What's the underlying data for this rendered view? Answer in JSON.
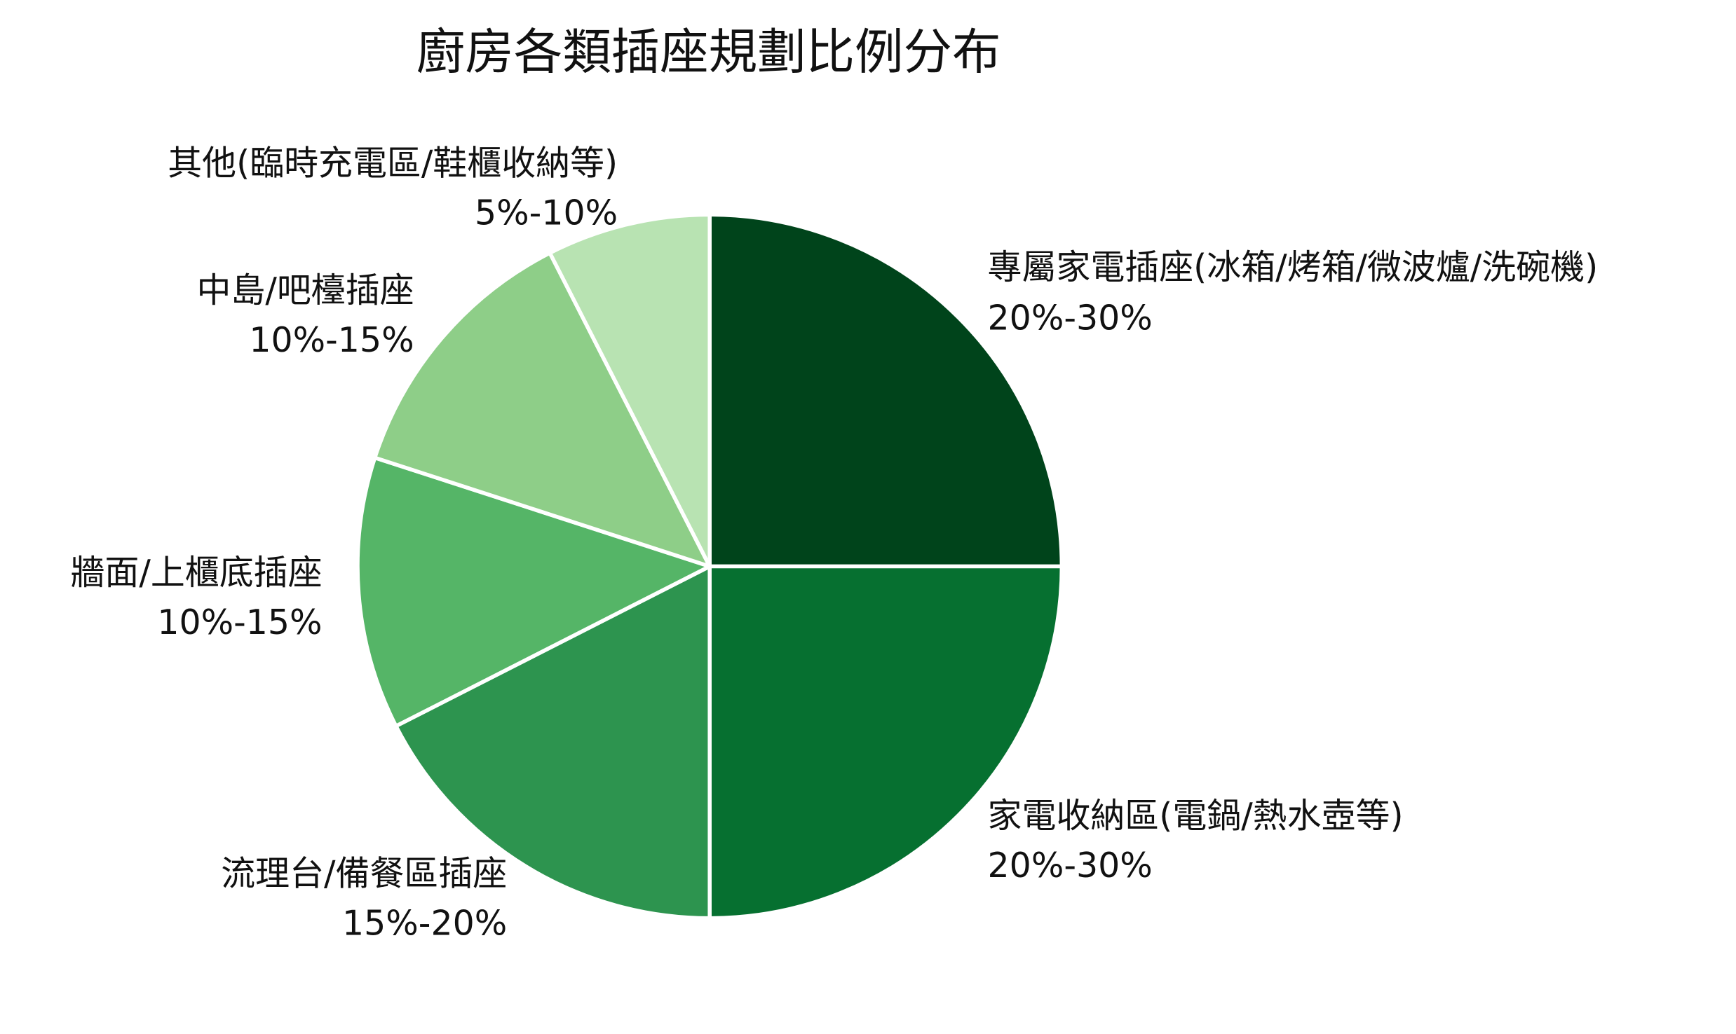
{
  "chart_data": {
    "type": "pie",
    "title": "廚房各類插座規劃比例分布",
    "slices": [
      {
        "label": "專屬家電插座(冰箱/烤箱/微波爐/洗碗機)",
        "range_label": "20%-30%",
        "value": 25,
        "color": "#00441b"
      },
      {
        "label": "家電收納區(電鍋/熱水壺等)",
        "range_label": "20%-30%",
        "value": 25,
        "color": "#067030"
      },
      {
        "label": "流理台/備餐區插座",
        "range_label": "15%-20%",
        "value": 17.5,
        "color": "#2d944f"
      },
      {
        "label": "牆面/上櫃底插座",
        "range_label": "10%-15%",
        "value": 12.5,
        "color": "#55b567"
      },
      {
        "label": "中島/吧檯插座",
        "range_label": "10%-15%",
        "value": 12.5,
        "color": "#8ece88"
      },
      {
        "label": "其他(臨時充電區/鞋櫃收納等)",
        "range_label": "5%-10%",
        "value": 7.5,
        "color": "#b8e3b2"
      }
    ],
    "start_angle": "12 o'clock",
    "direction": "clockwise",
    "slice_edge_color": "#ffffff",
    "legend": "none"
  }
}
